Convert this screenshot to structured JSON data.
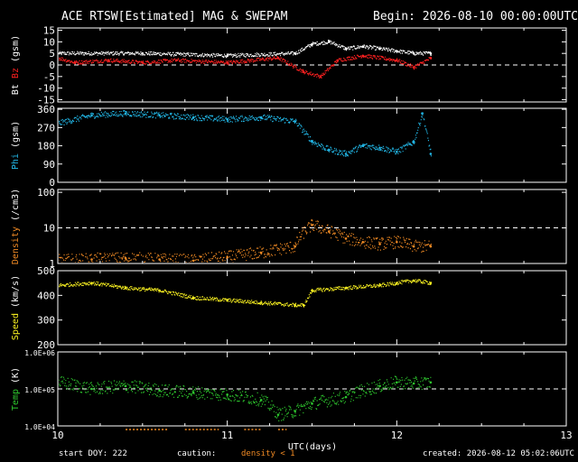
{
  "header": {
    "title": "ACE RTSW[Estimated] MAG & SWEPAM",
    "begin": "Begin: 2026-08-10 00:00:00UTC"
  },
  "footer": {
    "start_doy": "start DOY: 222",
    "caution": "caution:",
    "density_note": "density < 1",
    "created": "created: 2026-08-12 05:02:06UTC"
  },
  "colors": {
    "bt": "#ffffff",
    "bz": "#ff2020",
    "phi": "#22b8e8",
    "density": "#f08a24",
    "speed": "#f8f020",
    "temp": "#2ec82e"
  },
  "chart_data": {
    "type": "scatter",
    "x_axis": {
      "label": "UTC(days)",
      "range": [
        10,
        13
      ],
      "ticks": [
        "10",
        "11",
        "12",
        "13"
      ]
    },
    "panels": [
      {
        "id": "mag",
        "ylabel_parts": [
          "Bt",
          "Bz",
          "(gsm)"
        ],
        "ylim": [
          -16,
          16
        ],
        "ticks": [
          "15",
          "10",
          "5",
          "0",
          "-5",
          "-10",
          "-15"
        ],
        "tick_values": [
          15,
          10,
          5,
          0,
          -5,
          -10,
          -15
        ],
        "dashed_at": 0,
        "series": [
          {
            "name": "Bt",
            "x": [
              10.0,
              10.5,
              11.0,
              11.4,
              11.5,
              11.6,
              11.7,
              11.8,
              11.9,
              12.0,
              12.1,
              12.2
            ],
            "y": [
              5,
              5,
              4,
              5,
              9,
              10,
              7,
              8,
              7,
              6,
              5,
              5
            ]
          },
          {
            "name": "Bz",
            "x": [
              10.0,
              10.1,
              10.3,
              10.5,
              10.7,
              11.0,
              11.3,
              11.45,
              11.55,
              11.65,
              11.8,
              12.0,
              12.1,
              12.2
            ],
            "y": [
              3,
              1,
              2,
              1,
              2,
              1,
              3,
              -3,
              -5,
              2,
              4,
              2,
              -1,
              3
            ]
          }
        ]
      },
      {
        "id": "phi",
        "ylabel_parts": [
          "Phi",
          "(gsm)"
        ],
        "ylim": [
          0,
          365
        ],
        "ticks": [
          "360",
          "270",
          "180",
          "90",
          "0"
        ],
        "tick_values": [
          360,
          270,
          180,
          90,
          0
        ],
        "series": [
          {
            "name": "Phi",
            "x": [
              10.0,
              10.2,
              10.4,
              10.6,
              10.8,
              11.0,
              11.2,
              11.4,
              11.5,
              11.6,
              11.7,
              11.8,
              11.9,
              12.0,
              12.1,
              12.15,
              12.2
            ],
            "y": [
              290,
              330,
              340,
              330,
              320,
              310,
              320,
              300,
              200,
              160,
              140,
              180,
              170,
              150,
              200,
              340,
              140
            ]
          }
        ]
      },
      {
        "id": "density",
        "ylabel_parts": [
          "Density",
          "(/cm3)"
        ],
        "log": true,
        "ylim": [
          1,
          120
        ],
        "ticks": [
          "100",
          "10",
          "1"
        ],
        "tick_values": [
          100,
          10,
          1
        ],
        "dashed_at": 10,
        "series": [
          {
            "name": "Density",
            "x": [
              10.0,
              10.2,
              10.4,
              10.6,
              10.8,
              11.0,
              11.2,
              11.4,
              11.5,
              11.6,
              11.7,
              11.8,
              11.9,
              12.0,
              12.1,
              12.2
            ],
            "y": [
              1.2,
              1.3,
              1.4,
              1.3,
              1.2,
              1.5,
              2.0,
              3.0,
              12,
              8,
              5,
              4,
              3.5,
              4,
              3,
              3
            ]
          }
        ]
      },
      {
        "id": "speed",
        "ylabel_parts": [
          "Speed",
          "(km/s)"
        ],
        "ylim": [
          200,
          500
        ],
        "ticks": [
          "500",
          "400",
          "300",
          "200"
        ],
        "tick_values": [
          500,
          400,
          300,
          200
        ],
        "series": [
          {
            "name": "Speed",
            "x": [
              10.0,
              10.2,
              10.4,
              10.6,
              10.8,
              11.0,
              11.2,
              11.4,
              11.45,
              11.5,
              11.7,
              11.9,
              12.0,
              12.1,
              12.2
            ],
            "y": [
              440,
              450,
              430,
              420,
              390,
              380,
              370,
              360,
              360,
              420,
              430,
              440,
              450,
              460,
              450
            ]
          }
        ]
      },
      {
        "id": "temp",
        "ylabel_parts": [
          "Temp",
          "(K)"
        ],
        "log": true,
        "ylim": [
          10000,
          1000000
        ],
        "ticks": [
          "1.0E+06",
          "1.0E+05",
          "1.0E+04"
        ],
        "tick_values": [
          1000000,
          100000,
          10000
        ],
        "dashed_at": 100000,
        "series": [
          {
            "name": "Temp",
            "x": [
              10.0,
              10.2,
              10.4,
              10.6,
              10.8,
              11.0,
              11.2,
              11.3,
              11.4,
              11.5,
              11.7,
              11.9,
              12.0,
              12.1,
              12.2
            ],
            "y": [
              150000,
              100000,
              120000,
              90000,
              80000,
              70000,
              50000,
              20000,
              25000,
              40000,
              60000,
              120000,
              150000,
              140000,
              150000
            ]
          }
        ]
      }
    ]
  }
}
